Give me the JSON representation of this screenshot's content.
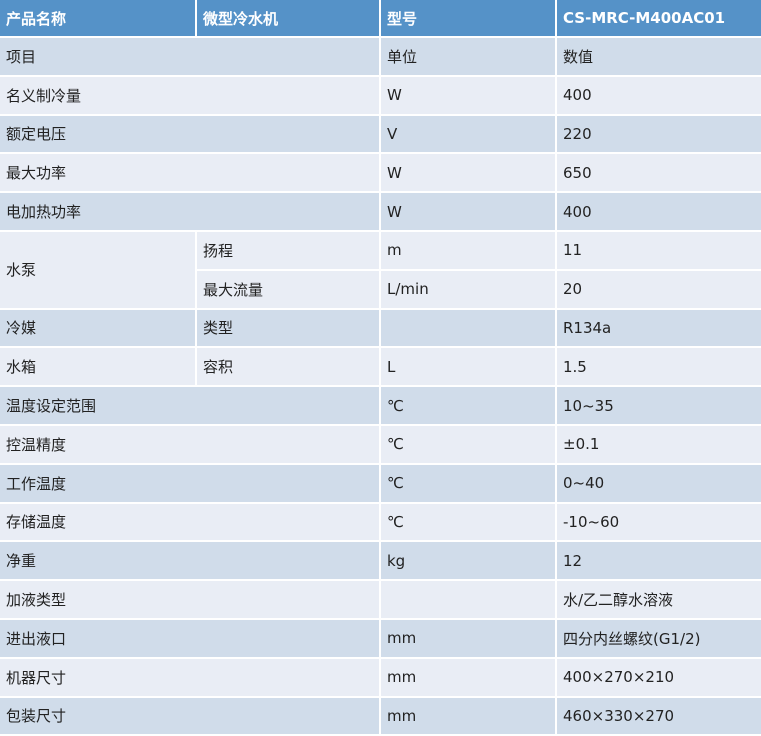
{
  "header": {
    "product_label": "产品名称",
    "product_value": "微型冷水机",
    "model_label": "型号",
    "model_value": "CS-MRC-M400AC01"
  },
  "rows": [
    {
      "item": "项目",
      "unit": "单位",
      "value": "数值"
    },
    {
      "item": "名义制冷量",
      "unit": "W",
      "value": "400"
    },
    {
      "item": "额定电压",
      "unit": "V",
      "value": "220"
    },
    {
      "item": "最大功率",
      "unit": "W",
      "value": "650"
    },
    {
      "item": "电加热功率",
      "unit": "W",
      "value": "400"
    }
  ],
  "pump": {
    "item": "水泵",
    "sub": [
      {
        "name": "扬程",
        "unit": "m",
        "value": "11"
      },
      {
        "name": "最大流量",
        "unit": "L/min",
        "value": "20"
      }
    ]
  },
  "refrigerant": {
    "item": "冷媒",
    "name": "类型",
    "unit": "",
    "value": "R134a"
  },
  "tank": {
    "item": "水箱",
    "name": "容积",
    "unit": "L",
    "value": "1.5"
  },
  "rows2": [
    {
      "item": "温度设定范围",
      "unit": "℃",
      "value": "10~35"
    },
    {
      "item": "控温精度",
      "unit": "℃",
      "value": "±0.1"
    },
    {
      "item": "工作温度",
      "unit": "℃",
      "value": "0~40"
    },
    {
      "item": "存储温度",
      "unit": "℃",
      "value": "-10~60"
    },
    {
      "item": "净重",
      "unit": "kg",
      "value": "12"
    },
    {
      "item": "加液类型",
      "unit": "",
      "value": "水/乙二醇水溶液"
    },
    {
      "item": "进出液口",
      "unit": "mm",
      "value": "四分内丝螺纹(G1/2)"
    },
    {
      "item": "机器尺寸",
      "unit": "mm",
      "value": "400×270×210"
    },
    {
      "item": "包装尺寸",
      "unit": "mm",
      "value": "460×330×270"
    }
  ],
  "colors": {
    "header": "#5592c8",
    "row_dark": "#d0dcea",
    "row_light": "#e9edf5"
  }
}
